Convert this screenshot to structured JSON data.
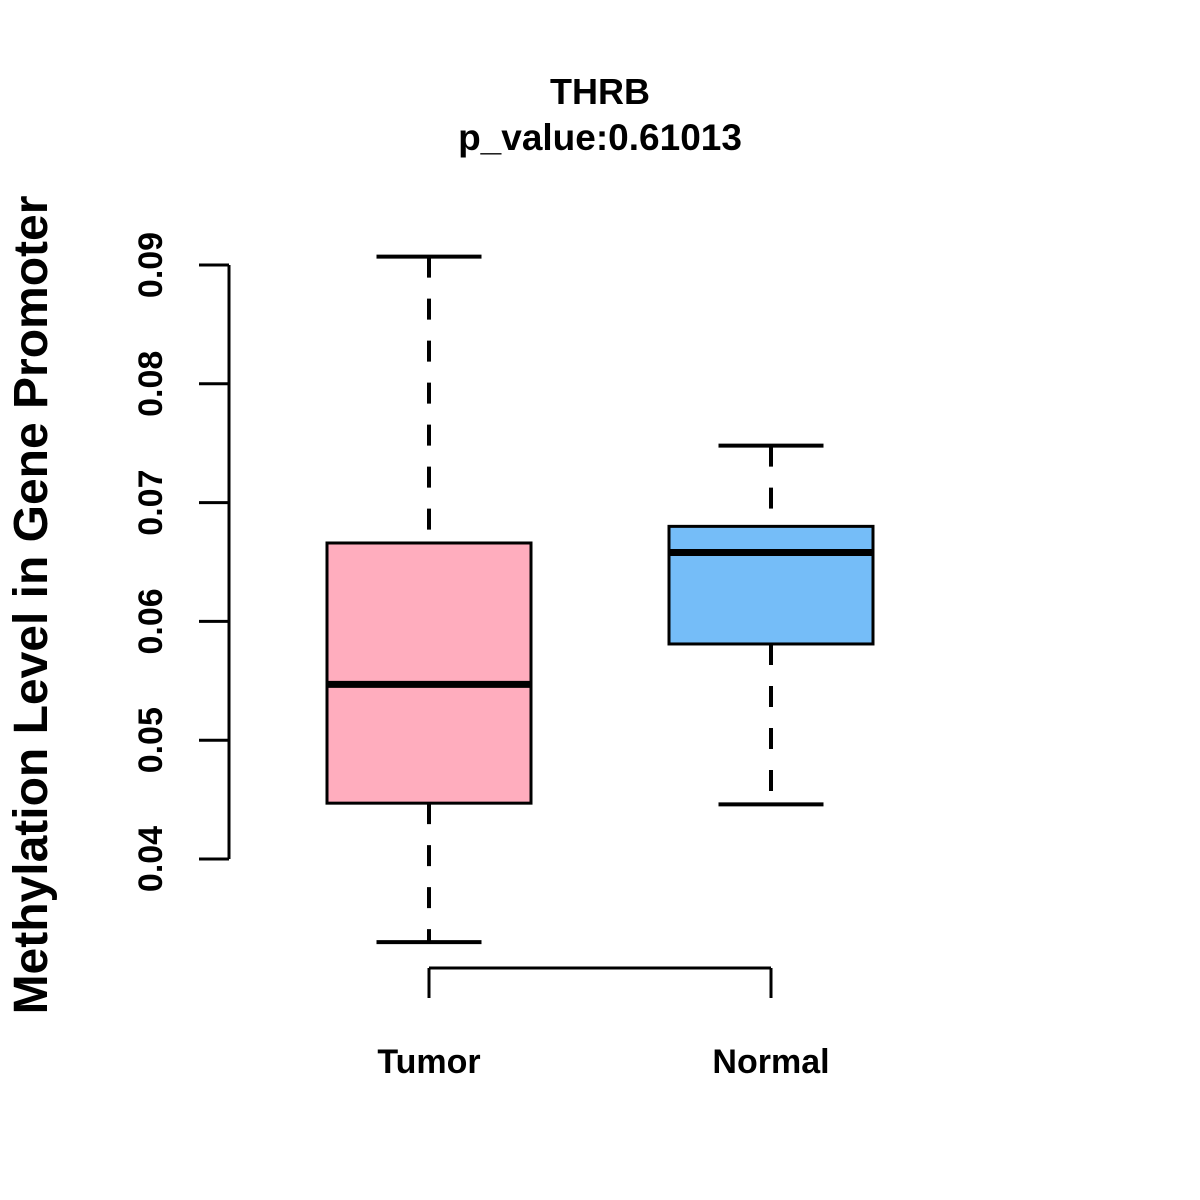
{
  "figure": {
    "background": "#FFFFFF"
  },
  "chart_data": {
    "type": "boxplot",
    "title": "THRB",
    "subtitle": "p_value:0.61013",
    "ylabel": "Methylation Level in Gene Promoter",
    "xlabel": "",
    "categories": [
      "Tumor",
      "Normal"
    ],
    "y_ticks": [
      0.04,
      0.05,
      0.06,
      0.07,
      0.08,
      0.09
    ],
    "y_tick_labels": [
      "0.04",
      "0.05",
      "0.06",
      "0.07",
      "0.08",
      "0.09"
    ],
    "ylim": [
      0.0325,
      0.0925
    ],
    "grid": false,
    "legend": "none",
    "line_color": "#000000",
    "whisker_style": "dashed",
    "series": [
      {
        "name": "Tumor",
        "color": "#FFADBE",
        "min": 0.033,
        "q1": 0.0447,
        "median": 0.0547,
        "q3": 0.0666,
        "max": 0.0907
      },
      {
        "name": "Normal",
        "color": "#75BDF8",
        "min": 0.0446,
        "q1": 0.0581,
        "median": 0.0658,
        "q3": 0.068,
        "max": 0.0748
      }
    ]
  }
}
